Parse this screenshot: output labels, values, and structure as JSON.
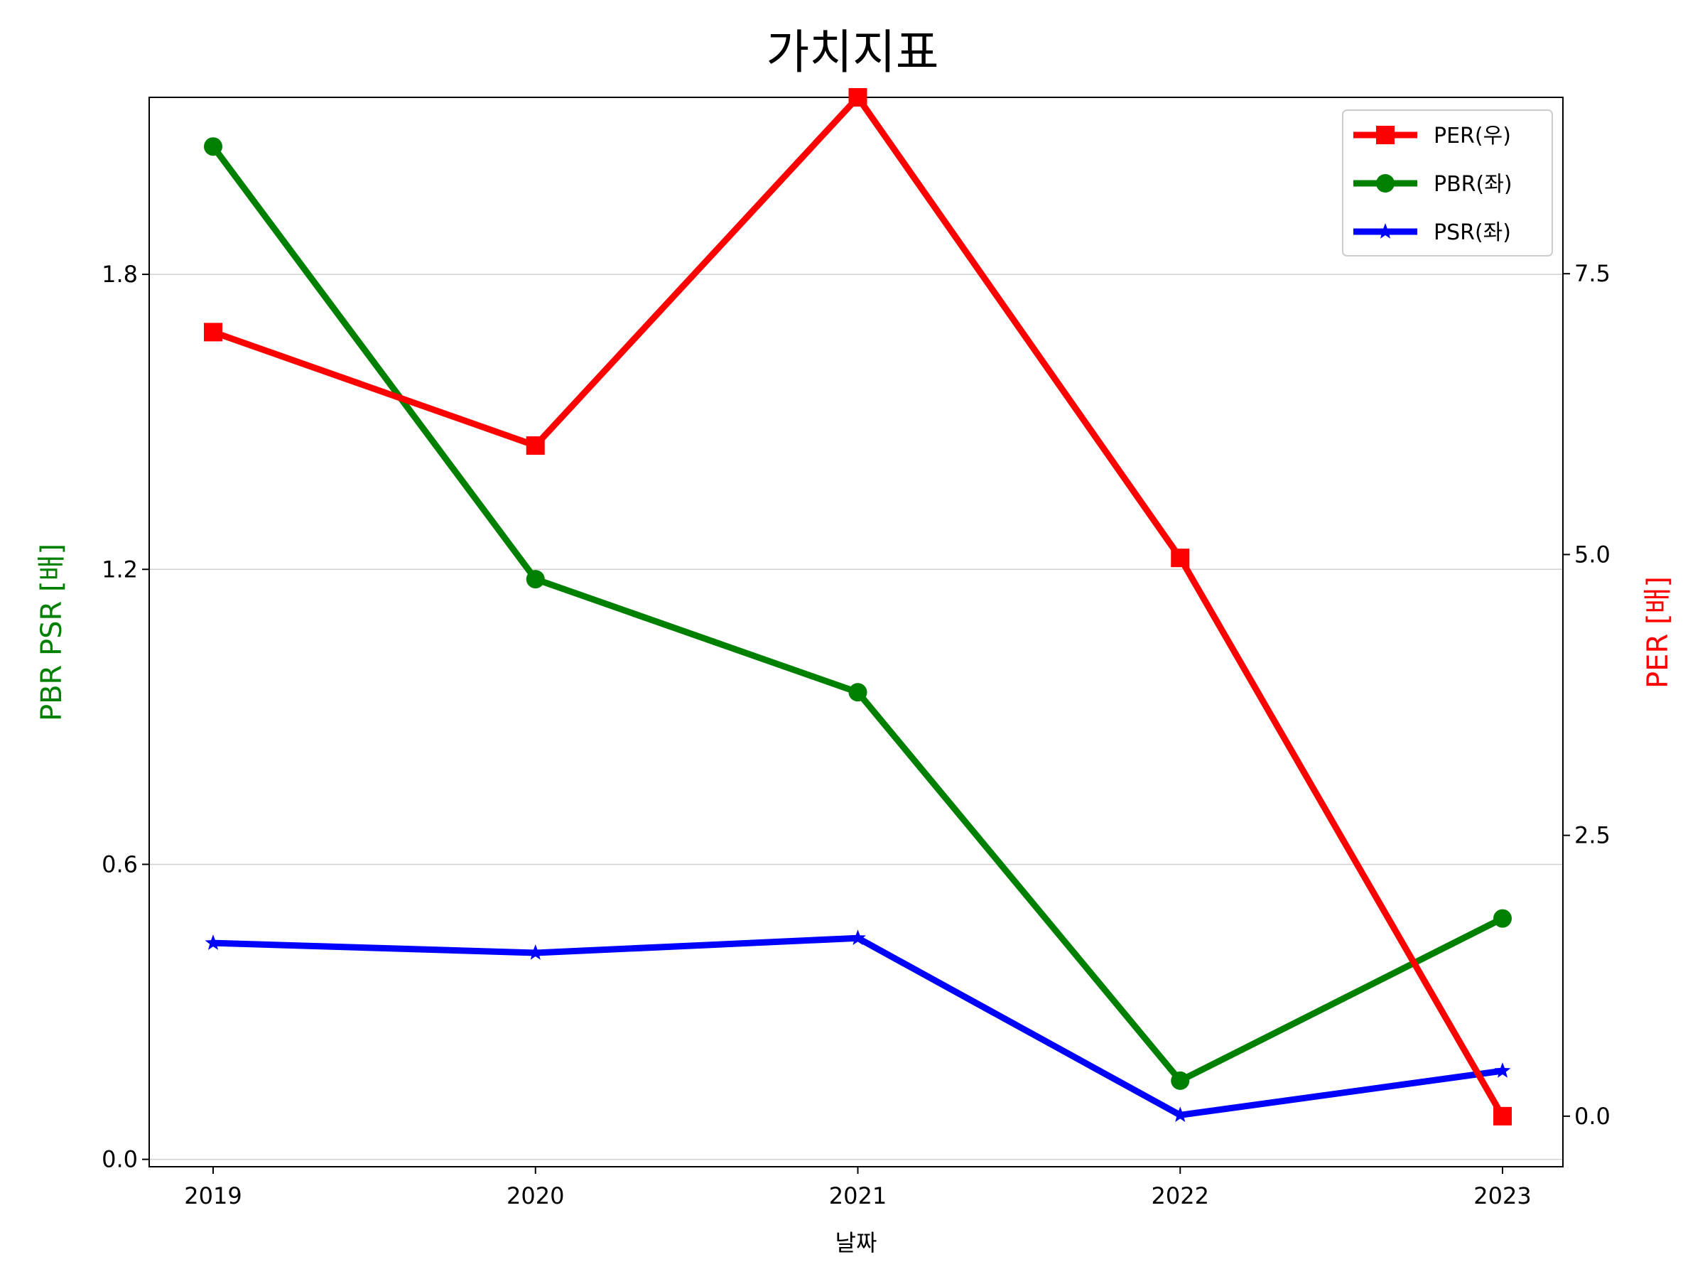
{
  "chart_data": {
    "type": "line",
    "title": "가치지표",
    "xlabel": "날짜",
    "ylabel_left": "PBR PSR [배]",
    "ylabel_right": "PER [배]",
    "categories": [
      "2019",
      "2020",
      "2021",
      "2022",
      "2023"
    ],
    "left_ylim": [
      -0.015,
      2.16
    ],
    "left_yticks": [
      "0.0",
      "0.6",
      "1.2",
      "1.8"
    ],
    "left_ytick_values": [
      0.0,
      0.6,
      1.2,
      1.8
    ],
    "right_ylim": [
      -0.45,
      9.07
    ],
    "right_yticks": [
      "0.0",
      "2.5",
      "5.0",
      "7.5"
    ],
    "right_ytick_values": [
      0.0,
      2.5,
      5.0,
      7.5
    ],
    "grid": "horizontal",
    "legend_position": "top-right",
    "series": [
      {
        "name": "PER(우)",
        "axis": "right",
        "color": "#ff0000",
        "marker": "square",
        "values": [
          6.98,
          5.97,
          9.07,
          4.97,
          0.0
        ]
      },
      {
        "name": "PBR(좌)",
        "axis": "left",
        "color": "#008000",
        "marker": "circle",
        "values": [
          2.06,
          1.18,
          0.95,
          0.16,
          0.49
        ]
      },
      {
        "name": "PSR(좌)",
        "axis": "left",
        "color": "#0000ff",
        "marker": "star",
        "values": [
          0.44,
          0.42,
          0.45,
          0.09,
          0.18
        ]
      }
    ]
  }
}
